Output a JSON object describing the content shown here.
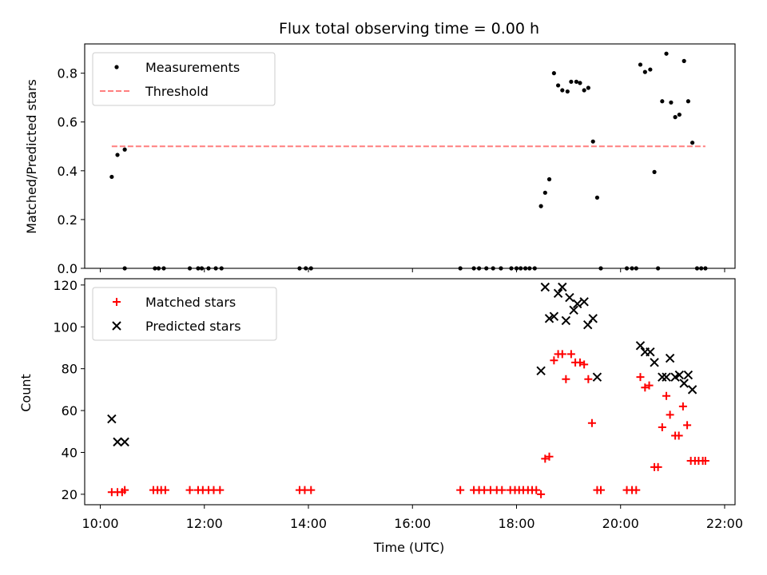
{
  "chart_data": [
    {
      "type": "scatter",
      "title": "Flux total observing time = 0.00 h",
      "xlabel": "",
      "ylabel": "Matched/Predicted stars",
      "xlim": [
        9.7,
        22.2
      ],
      "ylim": [
        0,
        0.92
      ],
      "yticks": [
        0.0,
        0.2,
        0.4,
        0.6,
        0.8
      ],
      "ytick_labels": [
        "0.0",
        "0.2",
        "0.4",
        "0.6",
        "0.8"
      ],
      "legend_position": "top-left",
      "series": [
        {
          "name": "Measurements",
          "color": "#000000",
          "marker": "dot",
          "points": [
            [
              10.22,
              0.375
            ],
            [
              10.33,
              0.465
            ],
            [
              10.47,
              0.487
            ],
            [
              10.47,
              0.0
            ],
            [
              11.05,
              0.0
            ],
            [
              11.12,
              0.0
            ],
            [
              11.22,
              0.0
            ],
            [
              11.72,
              0.0
            ],
            [
              11.88,
              0.0
            ],
            [
              11.95,
              0.0
            ],
            [
              12.08,
              0.0
            ],
            [
              12.22,
              0.0
            ],
            [
              12.33,
              0.0
            ],
            [
              13.83,
              0.0
            ],
            [
              13.95,
              0.0
            ],
            [
              14.05,
              0.0
            ],
            [
              16.92,
              0.0
            ],
            [
              17.18,
              0.0
            ],
            [
              17.28,
              0.0
            ],
            [
              17.42,
              0.0
            ],
            [
              17.55,
              0.0
            ],
            [
              17.7,
              0.0
            ],
            [
              17.9,
              0.0
            ],
            [
              18.0,
              0.0
            ],
            [
              18.08,
              0.0
            ],
            [
              18.17,
              0.0
            ],
            [
              18.25,
              0.0
            ],
            [
              18.35,
              0.0
            ],
            [
              18.47,
              0.255
            ],
            [
              18.55,
              0.31
            ],
            [
              18.63,
              0.365
            ],
            [
              18.72,
              0.8
            ],
            [
              18.8,
              0.75
            ],
            [
              18.88,
              0.73
            ],
            [
              18.98,
              0.725
            ],
            [
              19.05,
              0.765
            ],
            [
              19.15,
              0.765
            ],
            [
              19.22,
              0.76
            ],
            [
              19.3,
              0.73
            ],
            [
              19.38,
              0.74
            ],
            [
              19.47,
              0.52
            ],
            [
              19.55,
              0.29
            ],
            [
              19.62,
              0.0
            ],
            [
              20.12,
              0.0
            ],
            [
              20.22,
              0.0
            ],
            [
              20.3,
              0.0
            ],
            [
              20.38,
              0.835
            ],
            [
              20.47,
              0.805
            ],
            [
              20.57,
              0.815
            ],
            [
              20.65,
              0.395
            ],
            [
              20.72,
              0.0
            ],
            [
              20.8,
              0.685
            ],
            [
              20.88,
              0.88
            ],
            [
              20.97,
              0.68
            ],
            [
              21.05,
              0.62
            ],
            [
              21.13,
              0.63
            ],
            [
              21.22,
              0.85
            ],
            [
              21.3,
              0.685
            ],
            [
              21.38,
              0.515
            ],
            [
              21.47,
              0.0
            ],
            [
              21.55,
              0.0
            ],
            [
              21.63,
              0.0
            ]
          ]
        },
        {
          "name": "Threshold",
          "color": "#ff7f7f",
          "style": "dashed",
          "points": [
            [
              10.22,
              0.5
            ],
            [
              21.63,
              0.5
            ]
          ]
        }
      ]
    },
    {
      "type": "scatter",
      "title": "",
      "xlabel": "Time (UTC)",
      "ylabel": "Count",
      "xlim": [
        9.7,
        22.2
      ],
      "ylim": [
        15,
        123
      ],
      "xticks": [
        10,
        12,
        14,
        16,
        18,
        20,
        22
      ],
      "xtick_labels": [
        "10:00",
        "12:00",
        "14:00",
        "16:00",
        "18:00",
        "20:00",
        "22:00"
      ],
      "yticks": [
        20,
        40,
        60,
        80,
        100,
        120
      ],
      "ytick_labels": [
        "20",
        "40",
        "60",
        "80",
        "100",
        "120"
      ],
      "legend_position": "top-left",
      "series": [
        {
          "name": "Matched stars",
          "color": "#ff0000",
          "marker": "plus",
          "points": [
            [
              10.22,
              21
            ],
            [
              10.33,
              21
            ],
            [
              10.42,
              21
            ],
            [
              10.47,
              22
            ],
            [
              11.02,
              22
            ],
            [
              11.1,
              22
            ],
            [
              11.17,
              22
            ],
            [
              11.25,
              22
            ],
            [
              11.72,
              22
            ],
            [
              11.88,
              22
            ],
            [
              11.97,
              22
            ],
            [
              12.08,
              22
            ],
            [
              12.18,
              22
            ],
            [
              12.3,
              22
            ],
            [
              13.83,
              22
            ],
            [
              13.93,
              22
            ],
            [
              14.05,
              22
            ],
            [
              16.92,
              22
            ],
            [
              17.18,
              22
            ],
            [
              17.28,
              22
            ],
            [
              17.38,
              22
            ],
            [
              17.5,
              22
            ],
            [
              17.62,
              22
            ],
            [
              17.72,
              22
            ],
            [
              17.88,
              22
            ],
            [
              17.97,
              22
            ],
            [
              18.05,
              22
            ],
            [
              18.13,
              22
            ],
            [
              18.22,
              22
            ],
            [
              18.3,
              22
            ],
            [
              18.38,
              22
            ],
            [
              18.47,
              20
            ],
            [
              18.55,
              37
            ],
            [
              18.63,
              38
            ],
            [
              18.72,
              84
            ],
            [
              18.8,
              87
            ],
            [
              18.88,
              87
            ],
            [
              18.95,
              75
            ],
            [
              19.05,
              87
            ],
            [
              19.13,
              83
            ],
            [
              19.22,
              83
            ],
            [
              19.3,
              82
            ],
            [
              19.38,
              75
            ],
            [
              19.45,
              54
            ],
            [
              19.55,
              22
            ],
            [
              19.62,
              22
            ],
            [
              20.12,
              22
            ],
            [
              20.22,
              22
            ],
            [
              20.3,
              22
            ],
            [
              20.38,
              76
            ],
            [
              20.47,
              71
            ],
            [
              20.55,
              72
            ],
            [
              20.65,
              33
            ],
            [
              20.72,
              33
            ],
            [
              20.8,
              52
            ],
            [
              20.88,
              67
            ],
            [
              20.95,
              58
            ],
            [
              21.05,
              48
            ],
            [
              21.12,
              48
            ],
            [
              21.2,
              62
            ],
            [
              21.28,
              53
            ],
            [
              21.35,
              36
            ],
            [
              21.43,
              36
            ],
            [
              21.5,
              36
            ],
            [
              21.58,
              36
            ],
            [
              21.63,
              36
            ]
          ]
        },
        {
          "name": "Predicted stars",
          "color": "#000000",
          "marker": "x",
          "points": [
            [
              10.22,
              56
            ],
            [
              10.33,
              45
            ],
            [
              10.47,
              45
            ],
            [
              18.47,
              79
            ],
            [
              18.55,
              119
            ],
            [
              18.63,
              104
            ],
            [
              18.72,
              105
            ],
            [
              18.8,
              116
            ],
            [
              18.88,
              119
            ],
            [
              18.95,
              103
            ],
            [
              19.02,
              114
            ],
            [
              19.1,
              108
            ],
            [
              19.17,
              111
            ],
            [
              19.3,
              112
            ],
            [
              19.37,
              101
            ],
            [
              19.47,
              104
            ],
            [
              19.55,
              76
            ],
            [
              20.38,
              91
            ],
            [
              20.47,
              88
            ],
            [
              20.57,
              88
            ],
            [
              20.65,
              83
            ],
            [
              20.8,
              76
            ],
            [
              20.88,
              76
            ],
            [
              20.95,
              85
            ],
            [
              21.05,
              76
            ],
            [
              21.13,
              77
            ],
            [
              21.22,
              73
            ],
            [
              21.3,
              77
            ],
            [
              21.38,
              70
            ]
          ]
        }
      ]
    }
  ]
}
